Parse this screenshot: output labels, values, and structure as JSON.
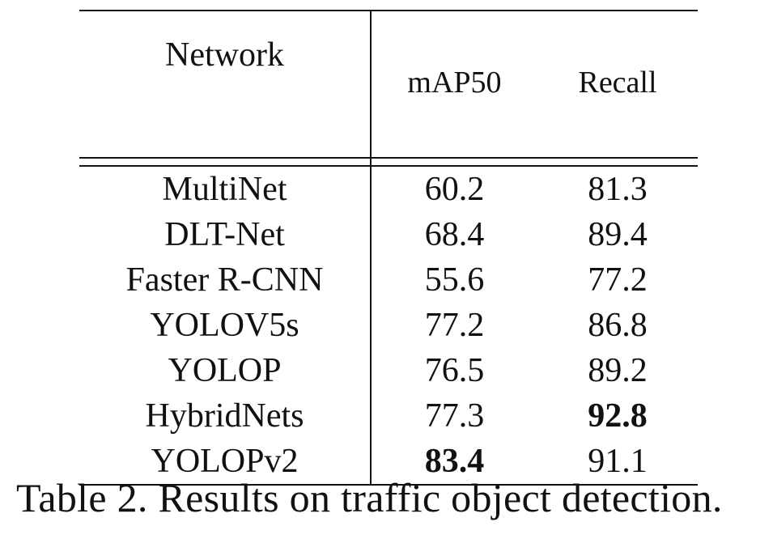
{
  "table": {
    "headers": {
      "network": "Network",
      "map50": "mAP50",
      "recall": "Recall"
    },
    "rows": [
      {
        "network": "MultiNet",
        "map50": "60.2",
        "recall": "81.3",
        "map50_bold": false,
        "recall_bold": false
      },
      {
        "network": "DLT-Net",
        "map50": "68.4",
        "recall": "89.4",
        "map50_bold": false,
        "recall_bold": false
      },
      {
        "network": "Faster R-CNN",
        "map50": "55.6",
        "recall": "77.2",
        "map50_bold": false,
        "recall_bold": false
      },
      {
        "network": "YOLOV5s",
        "map50": "77.2",
        "recall": "86.8",
        "map50_bold": false,
        "recall_bold": false
      },
      {
        "network": "YOLOP",
        "map50": "76.5",
        "recall": "89.2",
        "map50_bold": false,
        "recall_bold": false
      },
      {
        "network": "HybridNets",
        "map50": "77.3",
        "recall": "92.8",
        "map50_bold": false,
        "recall_bold": true
      },
      {
        "network": "YOLOPv2",
        "map50": "83.4",
        "recall": "91.1",
        "map50_bold": true,
        "recall_bold": false
      }
    ]
  },
  "caption": "Table 2. Results on traffic object detection."
}
